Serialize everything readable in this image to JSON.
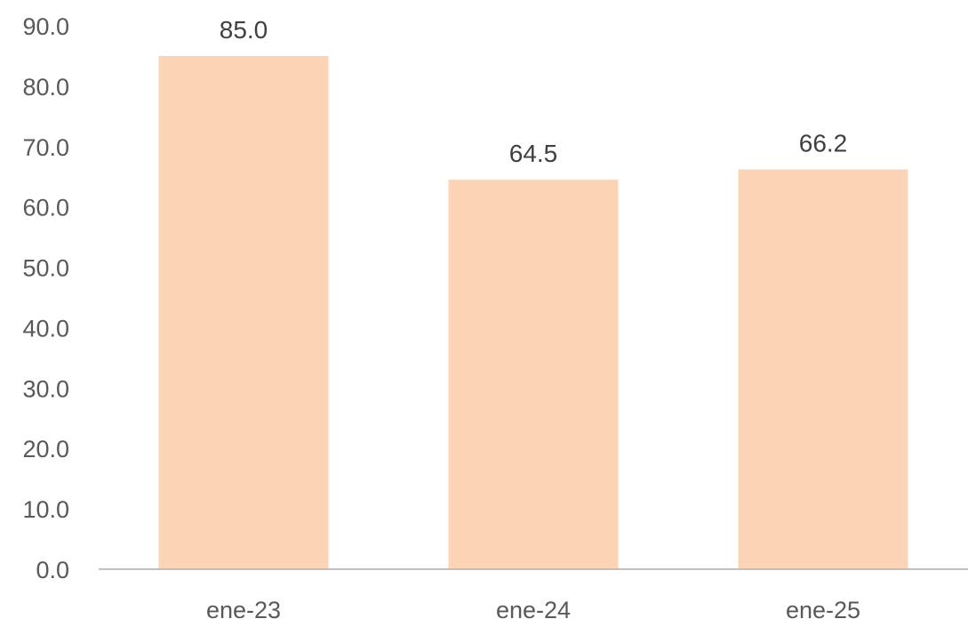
{
  "chart_data": {
    "type": "bar",
    "categories": [
      "ene-23",
      "ene-24",
      "ene-25"
    ],
    "values": [
      85.0,
      64.5,
      66.2
    ],
    "data_labels": [
      "85.0",
      "64.5",
      "66.2"
    ],
    "title": "",
    "xlabel": "",
    "ylabel": "",
    "ylim": [
      0,
      90
    ],
    "yticks": [
      0,
      10,
      20,
      30,
      40,
      50,
      60,
      70,
      80,
      90
    ],
    "ytick_labels": [
      "0.0",
      "10.0",
      "20.0",
      "30.0",
      "40.0",
      "50.0",
      "60.0",
      "70.0",
      "80.0",
      "90.0"
    ],
    "grid": false,
    "legend": "none",
    "colors": {
      "bar": "#FAD4B4",
      "axis": "#BFBFBF",
      "tick_text": "#595959",
      "label_text": "#404040"
    }
  }
}
